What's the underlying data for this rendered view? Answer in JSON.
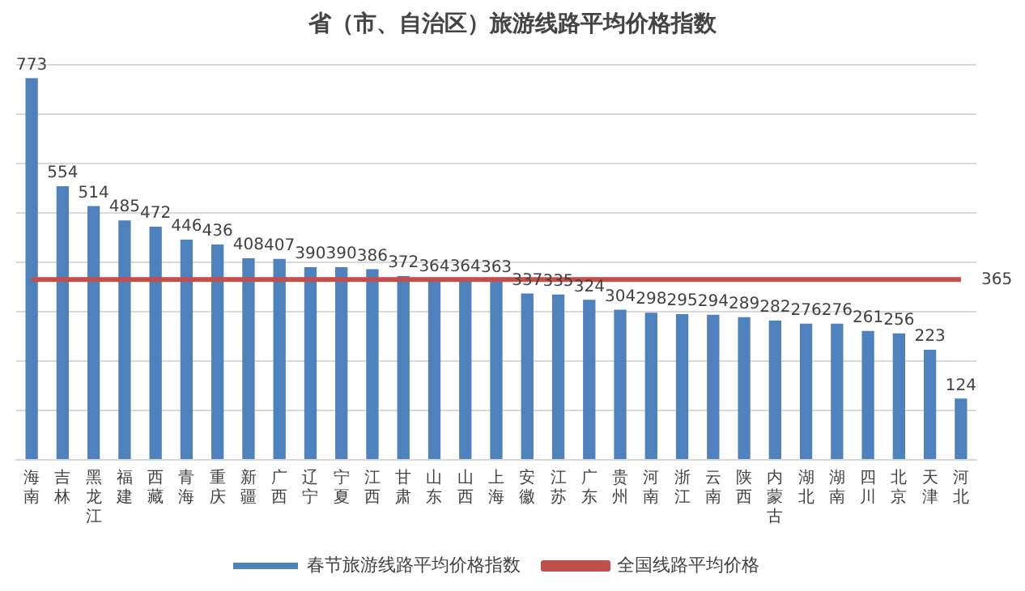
{
  "chart_data": {
    "type": "bar",
    "title": "省（市、自治区）旅游线路平均价格指数",
    "categories": [
      "海南",
      "吉林",
      "黑龙江",
      "福建",
      "西藏",
      "青海",
      "重庆",
      "新疆",
      "广西",
      "辽宁",
      "宁夏",
      "江西",
      "甘肃",
      "山东",
      "山西",
      "上海",
      "安徽",
      "江苏",
      "广东",
      "贵州",
      "河南",
      "浙江",
      "云南",
      "陕西",
      "内蒙古",
      "湖北",
      "湖南",
      "四川",
      "北京",
      "天津",
      "河北"
    ],
    "series": [
      {
        "name": "春节旅游线路平均价格指数",
        "color": "#4f81bd",
        "values": [
          773,
          554,
          514,
          485,
          472,
          446,
          436,
          408,
          407,
          390,
          390,
          386,
          372,
          364,
          364,
          363,
          337,
          335,
          324,
          304,
          298,
          295,
          294,
          289,
          282,
          276,
          276,
          261,
          256,
          223,
          124
        ],
        "value_labels": [
          "773",
          "554",
          "514",
          "485",
          "472",
          "446",
          "436",
          "408",
          "407",
          "390",
          "390",
          "386",
          "372",
          "364",
          "364",
          "363",
          "337",
          "335",
          "324",
          "304",
          "298",
          "295",
          "294",
          "289",
          "282",
          "276",
          "276",
          "261",
          "256",
          "223",
          "124"
        ]
      },
      {
        "name": "全国线路平均价格",
        "type": "line",
        "color": "#c0504d",
        "values": [
          365,
          365,
          365,
          365,
          365,
          365,
          365,
          365,
          365,
          365,
          365,
          365,
          365,
          365,
          365,
          365,
          365,
          365,
          365,
          365,
          365,
          365,
          365,
          365,
          365,
          365,
          365,
          365,
          365,
          365,
          365
        ],
        "value_labels": [
          null,
          null,
          null,
          null,
          null,
          null,
          null,
          null,
          null,
          null,
          null,
          null,
          null,
          null,
          null,
          null,
          null,
          null,
          null,
          null,
          null,
          null,
          null,
          null,
          null,
          null,
          null,
          null,
          null,
          null,
          "365"
        ]
      }
    ],
    "ylim": [
      0,
      800
    ],
    "yticks": [
      {
        "value": 0,
        "label": null
      },
      {
        "value": 100,
        "label": null
      },
      {
        "value": 200,
        "label": null
      },
      {
        "value": 300,
        "label": null
      },
      {
        "value": 400,
        "label": null
      },
      {
        "value": 500,
        "label": null
      },
      {
        "value": 600,
        "label": null
      },
      {
        "value": 700,
        "label": null
      },
      {
        "value": 800,
        "label": null
      }
    ],
    "tick_labels": "x",
    "grid": "y",
    "legend": "bottom",
    "marker": "none"
  }
}
